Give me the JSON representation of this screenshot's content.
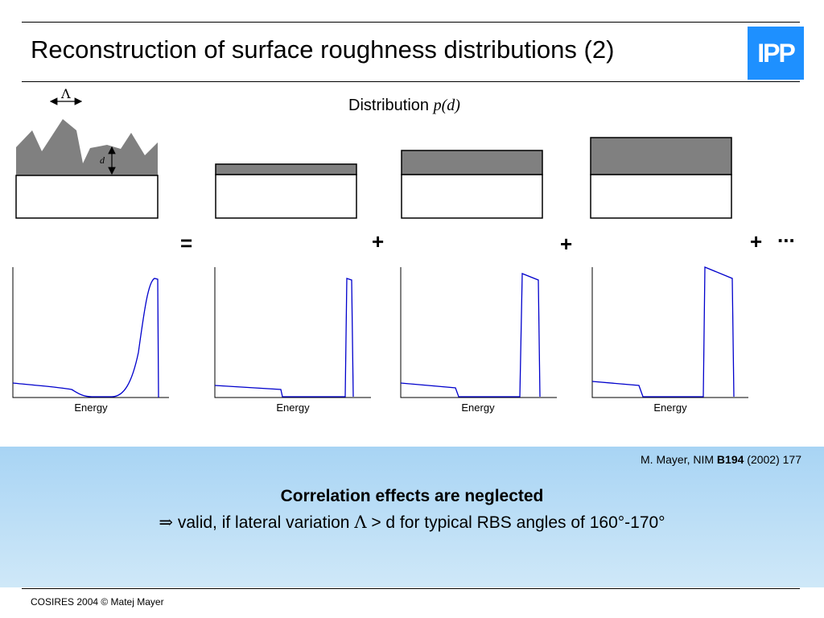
{
  "title": "Reconstruction of surface roughness distributions (2)",
  "logo": {
    "text": "IPP",
    "color": "#1e90ff"
  },
  "distribution_label": {
    "text": "Distribution",
    "symbol": "p(d)"
  },
  "sketch": {
    "lambda_symbol": "Λ",
    "depth_symbol": "d"
  },
  "operators": [
    "=",
    "+",
    "+",
    "+",
    "..."
  ],
  "plots": {
    "x_label": "Energy",
    "line_color": "#0000cc",
    "count": 4
  },
  "reference": {
    "prefix": "M. Mayer, NIM ",
    "volume": "B194",
    "suffix": " (2002) 177"
  },
  "conclusion": {
    "heading": "Correlation effects are neglected",
    "arrow": "⇒",
    "text_before": " valid, if lateral variation ",
    "lambda": "Λ",
    "text_after": " > d for typical RBS angles of 160°-170°"
  },
  "footer": "COSIRES 2004 © Matej Mayer",
  "colors": {
    "panel": "#a8d4f4",
    "layer_fill": "#808080"
  }
}
